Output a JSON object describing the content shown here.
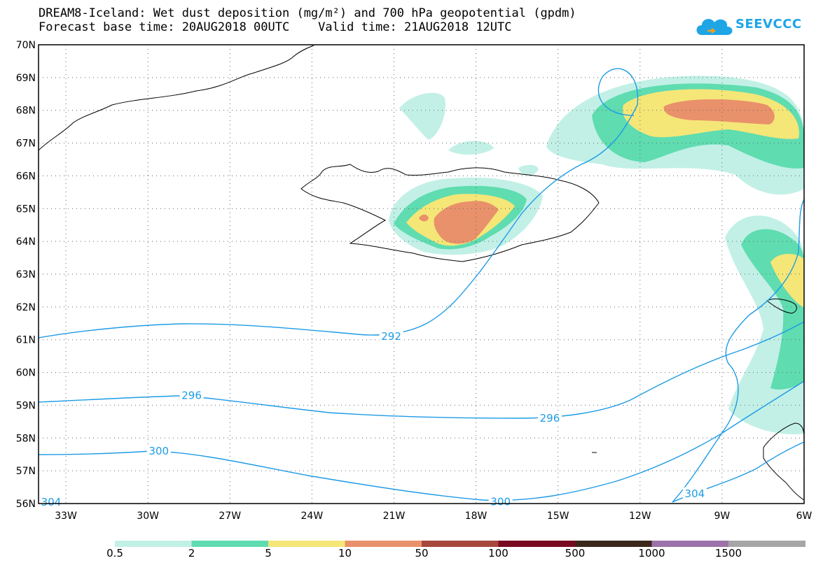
{
  "title": {
    "line1": "DREAM8-Iceland: Wet dust deposition (mg/m²) and 700 hPa geopotential (gpdm)",
    "line2": "Forecast base time: 20AUG2018 00UTC    Valid time: 21AUG2018 12UTC"
  },
  "logo": {
    "text": "SEEVCCC",
    "icon": "cloud-logo-icon",
    "color": "#1ea5e6"
  },
  "map": {
    "lat_labels": [
      "56N",
      "57N",
      "58N",
      "59N",
      "60N",
      "61N",
      "62N",
      "63N",
      "64N",
      "65N",
      "66N",
      "67N",
      "68N",
      "69N",
      "70N"
    ],
    "lon_labels": [
      "33W",
      "30W",
      "27W",
      "24W",
      "21W",
      "18W",
      "15W",
      "12W",
      "9W",
      "6W"
    ],
    "lat_range": [
      56,
      70
    ],
    "lon_range": [
      -34,
      -6
    ],
    "gridlines": "dotted",
    "contour_color": "#1e9be6",
    "contour_labels": [
      {
        "text": "292",
        "lon": -21.1,
        "lat": 61.1
      },
      {
        "text": "296",
        "lon": -28.4,
        "lat": 59.3
      },
      {
        "text": "296",
        "lon": -15.3,
        "lat": 58.6
      },
      {
        "text": "300",
        "lon": -29.6,
        "lat": 57.6
      },
      {
        "text": "300",
        "lon": -17.1,
        "lat": 56.05
      },
      {
        "text": "304",
        "lon": -10.0,
        "lat": 56.3
      },
      {
        "text": "304",
        "lon": -33.7,
        "lat": 56.0
      }
    ]
  },
  "legend": {
    "labels": [
      "0.5",
      "2",
      "5",
      "10",
      "50",
      "100",
      "500",
      "1000",
      "1500"
    ],
    "colors": [
      "#c2f0e6",
      "#5fdcb0",
      "#f5e678",
      "#e9916a",
      "#a8473e",
      "#7a0a22",
      "#3b281a",
      "#9d72a9",
      "#a6a6a6"
    ]
  }
}
